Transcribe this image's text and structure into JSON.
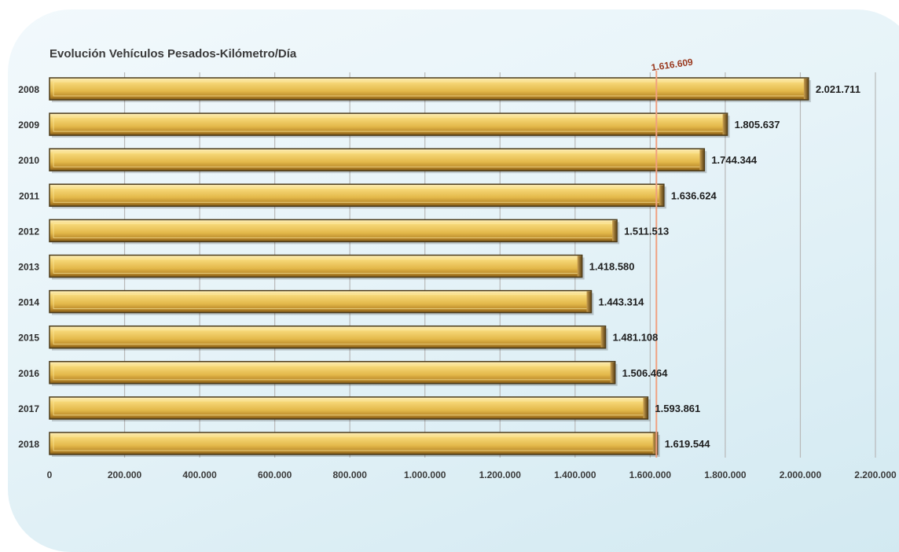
{
  "chart_data": {
    "type": "bar",
    "orientation": "horizontal",
    "title": "Evolución Vehículos Pesados-Kilómetro/Día",
    "categories": [
      "2008",
      "2009",
      "2010",
      "2011",
      "2012",
      "2013",
      "2014",
      "2015",
      "2016",
      "2017",
      "2018"
    ],
    "values": [
      2021711,
      1805637,
      1744344,
      1636624,
      1511513,
      1418580,
      1443314,
      1481108,
      1506464,
      1593861,
      1619544
    ],
    "value_labels": [
      "2.021.711",
      "1.805.637",
      "1.744.344",
      "1.636.624",
      "1.511.513",
      "1.418.580",
      "1.443.314",
      "1.481.108",
      "1.506.464",
      "1.593.861",
      "1.619.544"
    ],
    "xlim": [
      0,
      2200000
    ],
    "xticks": [
      0,
      200000,
      400000,
      600000,
      800000,
      1000000,
      1200000,
      1400000,
      1600000,
      1800000,
      2000000,
      2200000
    ],
    "xtick_labels": [
      "0",
      "200.000",
      "400.000",
      "600.000",
      "800.000",
      "1.000.000",
      "1.200.000",
      "1.400.000",
      "1.600.000",
      "1.800.000",
      "2.000.000",
      "2.200.000"
    ],
    "reference_line": {
      "value": 1616609,
      "label": "1.616.609",
      "color": "#f0a080",
      "label_color": "#9a3a20"
    },
    "grid": "vertical",
    "legend": "none",
    "colors": {
      "bar": "#e3b84a",
      "bar_highlight": "#fbe8a0",
      "bar_edge": "#4a3a1a",
      "grid": "#b8b8b8"
    }
  }
}
